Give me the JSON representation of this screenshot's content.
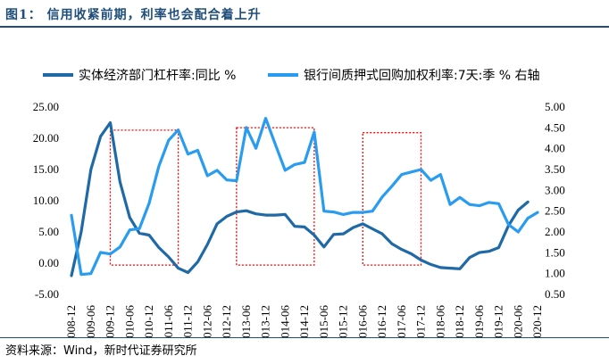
{
  "header": {
    "figure_title": "图1： 信用收紧前期，利率也会配合着上升"
  },
  "footer": {
    "source": "资料来源：Wind，新时代证券研究所"
  },
  "colors": {
    "series1": "#1f6aa6",
    "series2": "#2a9cf0",
    "highlight": "#ff0000",
    "frame": "#1f4e79"
  },
  "chart_data": {
    "type": "line",
    "title": "",
    "xlabel": "",
    "ylabel": "",
    "x_labels": [
      "2008-12",
      "2009-06",
      "2009-12",
      "2010-06",
      "2010-12",
      "2011-06",
      "2011-12",
      "2012-06",
      "2012-12",
      "2013-06",
      "2013-12",
      "2014-06",
      "2014-12",
      "2015-06",
      "2015-12",
      "2016-06",
      "2016-12",
      "2017-06",
      "2017-12",
      "2018-06",
      "2018-12",
      "2019-06",
      "2019-12",
      "2020-06",
      "2020-12"
    ],
    "x_range": [
      "2008-12",
      "2020-12"
    ],
    "y_left": {
      "range": [
        -5,
        25
      ],
      "ticks": [
        "-5.00",
        "0.00",
        "5.00",
        "10.00",
        "15.00",
        "20.00",
        "25.00"
      ]
    },
    "y_right": {
      "range": [
        0.5,
        5
      ],
      "ticks": [
        "0.50",
        "1.00",
        "1.50",
        "2.00",
        "2.50",
        "3.00",
        "3.50",
        "4.00",
        "4.50",
        "5.00"
      ]
    },
    "legend": {
      "position": "top"
    },
    "grid": false,
    "series": [
      {
        "name": "实体经济部门杠杆率:同比 %",
        "axis": "left",
        "points": [
          [
            "2008-12",
            -2.0
          ],
          [
            "2009-03",
            5.0
          ],
          [
            "2009-06",
            15.0
          ],
          [
            "2009-09",
            20.3
          ],
          [
            "2009-12",
            22.5
          ],
          [
            "2010-03",
            13.0
          ],
          [
            "2010-06",
            7.3
          ],
          [
            "2010-09",
            4.8
          ],
          [
            "2010-12",
            4.5
          ],
          [
            "2011-03",
            2.5
          ],
          [
            "2011-06",
            1.0
          ],
          [
            "2011-09",
            -0.8
          ],
          [
            "2011-12",
            -1.5
          ],
          [
            "2012-03",
            0.2
          ],
          [
            "2012-06",
            3.0
          ],
          [
            "2012-09",
            6.3
          ],
          [
            "2012-12",
            7.5
          ],
          [
            "2013-03",
            8.2
          ],
          [
            "2013-06",
            8.4
          ],
          [
            "2013-09",
            7.9
          ],
          [
            "2013-12",
            7.7
          ],
          [
            "2014-03",
            7.7
          ],
          [
            "2014-06",
            7.8
          ],
          [
            "2014-09",
            5.9
          ],
          [
            "2014-12",
            5.8
          ],
          [
            "2015-03",
            4.5
          ],
          [
            "2015-06",
            2.6
          ],
          [
            "2015-09",
            4.6
          ],
          [
            "2015-12",
            4.7
          ],
          [
            "2016-03",
            5.7
          ],
          [
            "2016-06",
            6.3
          ],
          [
            "2016-09",
            5.5
          ],
          [
            "2016-12",
            4.7
          ],
          [
            "2017-03",
            3.1
          ],
          [
            "2017-06",
            2.2
          ],
          [
            "2017-09",
            1.5
          ],
          [
            "2017-12",
            0.5
          ],
          [
            "2018-03",
            -0.2
          ],
          [
            "2018-06",
            -0.7
          ],
          [
            "2018-09",
            -0.8
          ],
          [
            "2018-12",
            -0.9
          ],
          [
            "2019-03",
            0.9
          ],
          [
            "2019-06",
            1.7
          ],
          [
            "2019-09",
            1.9
          ],
          [
            "2019-12",
            2.5
          ],
          [
            "2020-03",
            6.0
          ],
          [
            "2020-06",
            8.5
          ],
          [
            "2020-09",
            9.8
          ]
        ]
      },
      {
        "name": "银行间质押式回购加权利率:7天:季 % 右轴",
        "axis": "right",
        "points": [
          [
            "2008-12",
            2.4
          ],
          [
            "2009-03",
            0.98
          ],
          [
            "2009-06",
            1.0
          ],
          [
            "2009-09",
            1.51
          ],
          [
            "2009-12",
            1.47
          ],
          [
            "2010-03",
            1.64
          ],
          [
            "2010-06",
            2.05
          ],
          [
            "2010-09",
            2.08
          ],
          [
            "2010-12",
            2.69
          ],
          [
            "2011-03",
            3.58
          ],
          [
            "2011-06",
            4.2
          ],
          [
            "2011-09",
            4.45
          ],
          [
            "2011-12",
            3.87
          ],
          [
            "2012-03",
            3.96
          ],
          [
            "2012-06",
            3.35
          ],
          [
            "2012-09",
            3.48
          ],
          [
            "2012-12",
            3.25
          ],
          [
            "2013-03",
            3.23
          ],
          [
            "2013-06",
            4.51
          ],
          [
            "2013-09",
            4.01
          ],
          [
            "2013-12",
            4.73
          ],
          [
            "2014-03",
            4.1
          ],
          [
            "2014-06",
            3.48
          ],
          [
            "2014-09",
            3.62
          ],
          [
            "2014-12",
            3.67
          ],
          [
            "2015-03",
            4.4
          ],
          [
            "2015-06",
            2.5
          ],
          [
            "2015-09",
            2.48
          ],
          [
            "2015-12",
            2.42
          ],
          [
            "2016-03",
            2.47
          ],
          [
            "2016-06",
            2.47
          ],
          [
            "2016-09",
            2.5
          ],
          [
            "2016-12",
            2.84
          ],
          [
            "2017-03",
            3.1
          ],
          [
            "2017-06",
            3.38
          ],
          [
            "2017-09",
            3.44
          ],
          [
            "2017-12",
            3.5
          ],
          [
            "2018-03",
            3.24
          ],
          [
            "2018-06",
            3.38
          ],
          [
            "2018-09",
            2.66
          ],
          [
            "2018-12",
            2.83
          ],
          [
            "2019-03",
            2.66
          ],
          [
            "2019-06",
            2.63
          ],
          [
            "2019-09",
            2.71
          ],
          [
            "2019-12",
            2.68
          ],
          [
            "2020-03",
            2.18
          ],
          [
            "2020-06",
            2.0
          ],
          [
            "2020-09",
            2.33
          ],
          [
            "2020-12",
            2.47
          ]
        ]
      }
    ],
    "annotations": [
      {
        "type": "dashed-box",
        "x_from": "2009-12",
        "x_to": "2011-09",
        "y_from": -0.3,
        "y_to": 21.3
      },
      {
        "type": "dashed-box",
        "x_from": "2013-03",
        "x_to": "2015-03",
        "y_from": -0.3,
        "y_to": 21.7
      },
      {
        "type": "dashed-box",
        "x_from": "2016-06",
        "x_to": "2017-12",
        "y_from": -0.3,
        "y_to": 20.9
      }
    ]
  }
}
